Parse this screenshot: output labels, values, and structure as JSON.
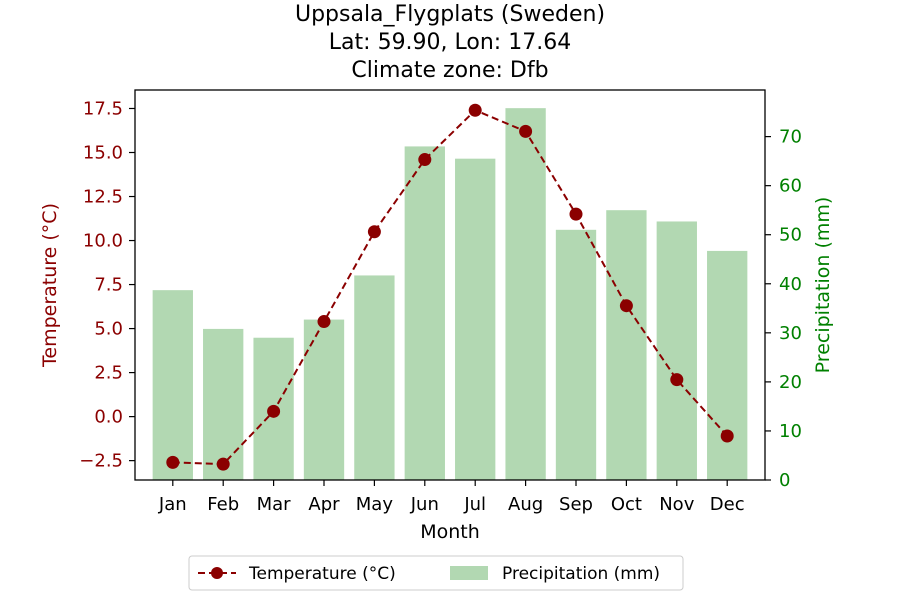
{
  "chart_data": {
    "type": "bar+line",
    "title_lines": [
      "Uppsala_Flygplats (Sweden)",
      "Lat: 59.90, Lon: 17.64",
      "Climate zone: Dfb"
    ],
    "xlabel": "Month",
    "ylabel_left": "Temperature (°C)",
    "ylabel_right": "Precipitation (mm)",
    "categories": [
      "Jan",
      "Feb",
      "Mar",
      "Apr",
      "May",
      "Jun",
      "Jul",
      "Aug",
      "Sep",
      "Oct",
      "Nov",
      "Dec"
    ],
    "temperature": {
      "name": "Temperature (°C)",
      "color": "#8b0000",
      "values": [
        -2.6,
        -2.7,
        0.3,
        5.4,
        10.5,
        14.6,
        17.4,
        16.2,
        11.5,
        6.3,
        2.1,
        -1.1
      ]
    },
    "precipitation": {
      "name": "Precipitation (mm)",
      "color": "#b2d8b2",
      "values": [
        38.7,
        30.8,
        29.0,
        32.7,
        41.7,
        68.0,
        65.5,
        75.8,
        51.0,
        55.0,
        52.7,
        46.7
      ]
    },
    "ylim_left": [
      -3.6,
      18.55
    ],
    "ylim_right": [
      0,
      79.5
    ],
    "yticks_left": [
      "−2.5",
      "0.0",
      "2.5",
      "5.0",
      "7.5",
      "10.0",
      "12.5",
      "15.0",
      "17.5"
    ],
    "yticks_right": [
      "0",
      "10",
      "20",
      "30",
      "40",
      "50",
      "60",
      "70"
    ],
    "left_axis_color": "#8b0000",
    "right_axis_color": "#008000",
    "legend_position": "bottom-center",
    "grid": false
  }
}
